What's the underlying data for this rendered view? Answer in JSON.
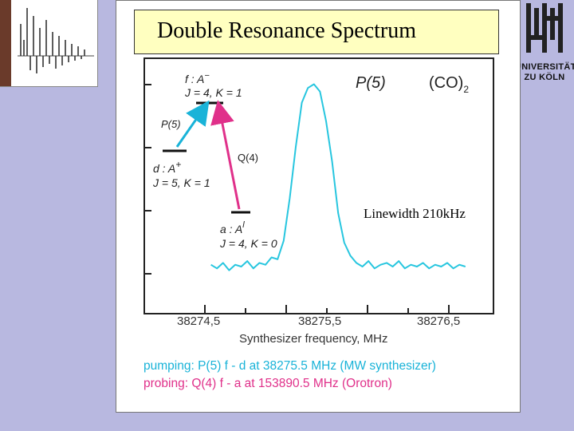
{
  "title": "Double Resonance Spectrum",
  "note": "Linewidth 210kHz",
  "logo": {
    "line1": "UNIVERSITÄT",
    "line2": "ZU KÖLN"
  },
  "colors": {
    "trace": "#27c6df",
    "pump": "#19b3d8",
    "probe": "#e0308a"
  },
  "diagram": {
    "molecule": "(CO)",
    "molecule_sub": "2",
    "branch": "P(5)",
    "level_f_name": "f : A",
    "level_f_sup": "−",
    "level_f_q": "J = 4, K = 1",
    "level_d_name": "d : A",
    "level_d_sup": "+",
    "level_d_q": "J = 5, K = 1",
    "level_a_name": "a : A",
    "level_a_sup": "l",
    "level_a_q": "J = 4, K = 0",
    "pump_label": "P(5)",
    "probe_label": "Q(4)"
  },
  "chart_data": {
    "type": "line",
    "title": "Double Resonance Spectrum",
    "xlabel": "Synthesizer frequency, MHz",
    "ylabel": "",
    "xlim": [
      38274.2,
      38276.9
    ],
    "ylim": [
      -0.12,
      1.05
    ],
    "xticks": [
      "38274,5",
      "38275,5",
      "38276,5"
    ],
    "grid": false,
    "series": [
      {
        "x": [
          38274.55,
          38274.6,
          38274.65,
          38274.7,
          38274.75,
          38274.8,
          38274.85,
          38274.9,
          38274.95,
          38275.0,
          38275.05,
          38275.1,
          38275.15,
          38275.2,
          38275.25,
          38275.3,
          38275.35,
          38275.4,
          38275.45,
          38275.5,
          38275.55,
          38275.6,
          38275.65,
          38275.7,
          38275.75,
          38275.8,
          38275.85,
          38275.9,
          38275.95,
          38276.0,
          38276.05,
          38276.1,
          38276.15,
          38276.2,
          38276.25,
          38276.3,
          38276.35,
          38276.4,
          38276.45,
          38276.5,
          38276.55,
          38276.6,
          38276.65
        ],
        "values": [
          0.02,
          0.0,
          0.03,
          -0.01,
          0.02,
          0.01,
          0.04,
          0.0,
          0.03,
          0.02,
          0.06,
          0.05,
          0.15,
          0.38,
          0.66,
          0.9,
          0.98,
          1.0,
          0.96,
          0.8,
          0.58,
          0.3,
          0.14,
          0.07,
          0.03,
          0.01,
          0.04,
          0.0,
          0.02,
          0.03,
          0.01,
          0.04,
          0.0,
          0.02,
          0.01,
          0.03,
          0.0,
          0.02,
          0.01,
          0.03,
          0.0,
          0.02,
          0.01
        ]
      }
    ]
  },
  "footer": {
    "pump": "pumping: P(5)  f - d  at 38275.5 MHz (MW synthesizer)",
    "probe": "probing: Q(4)  f - a  at 153890.5 MHz (Orotron)"
  }
}
